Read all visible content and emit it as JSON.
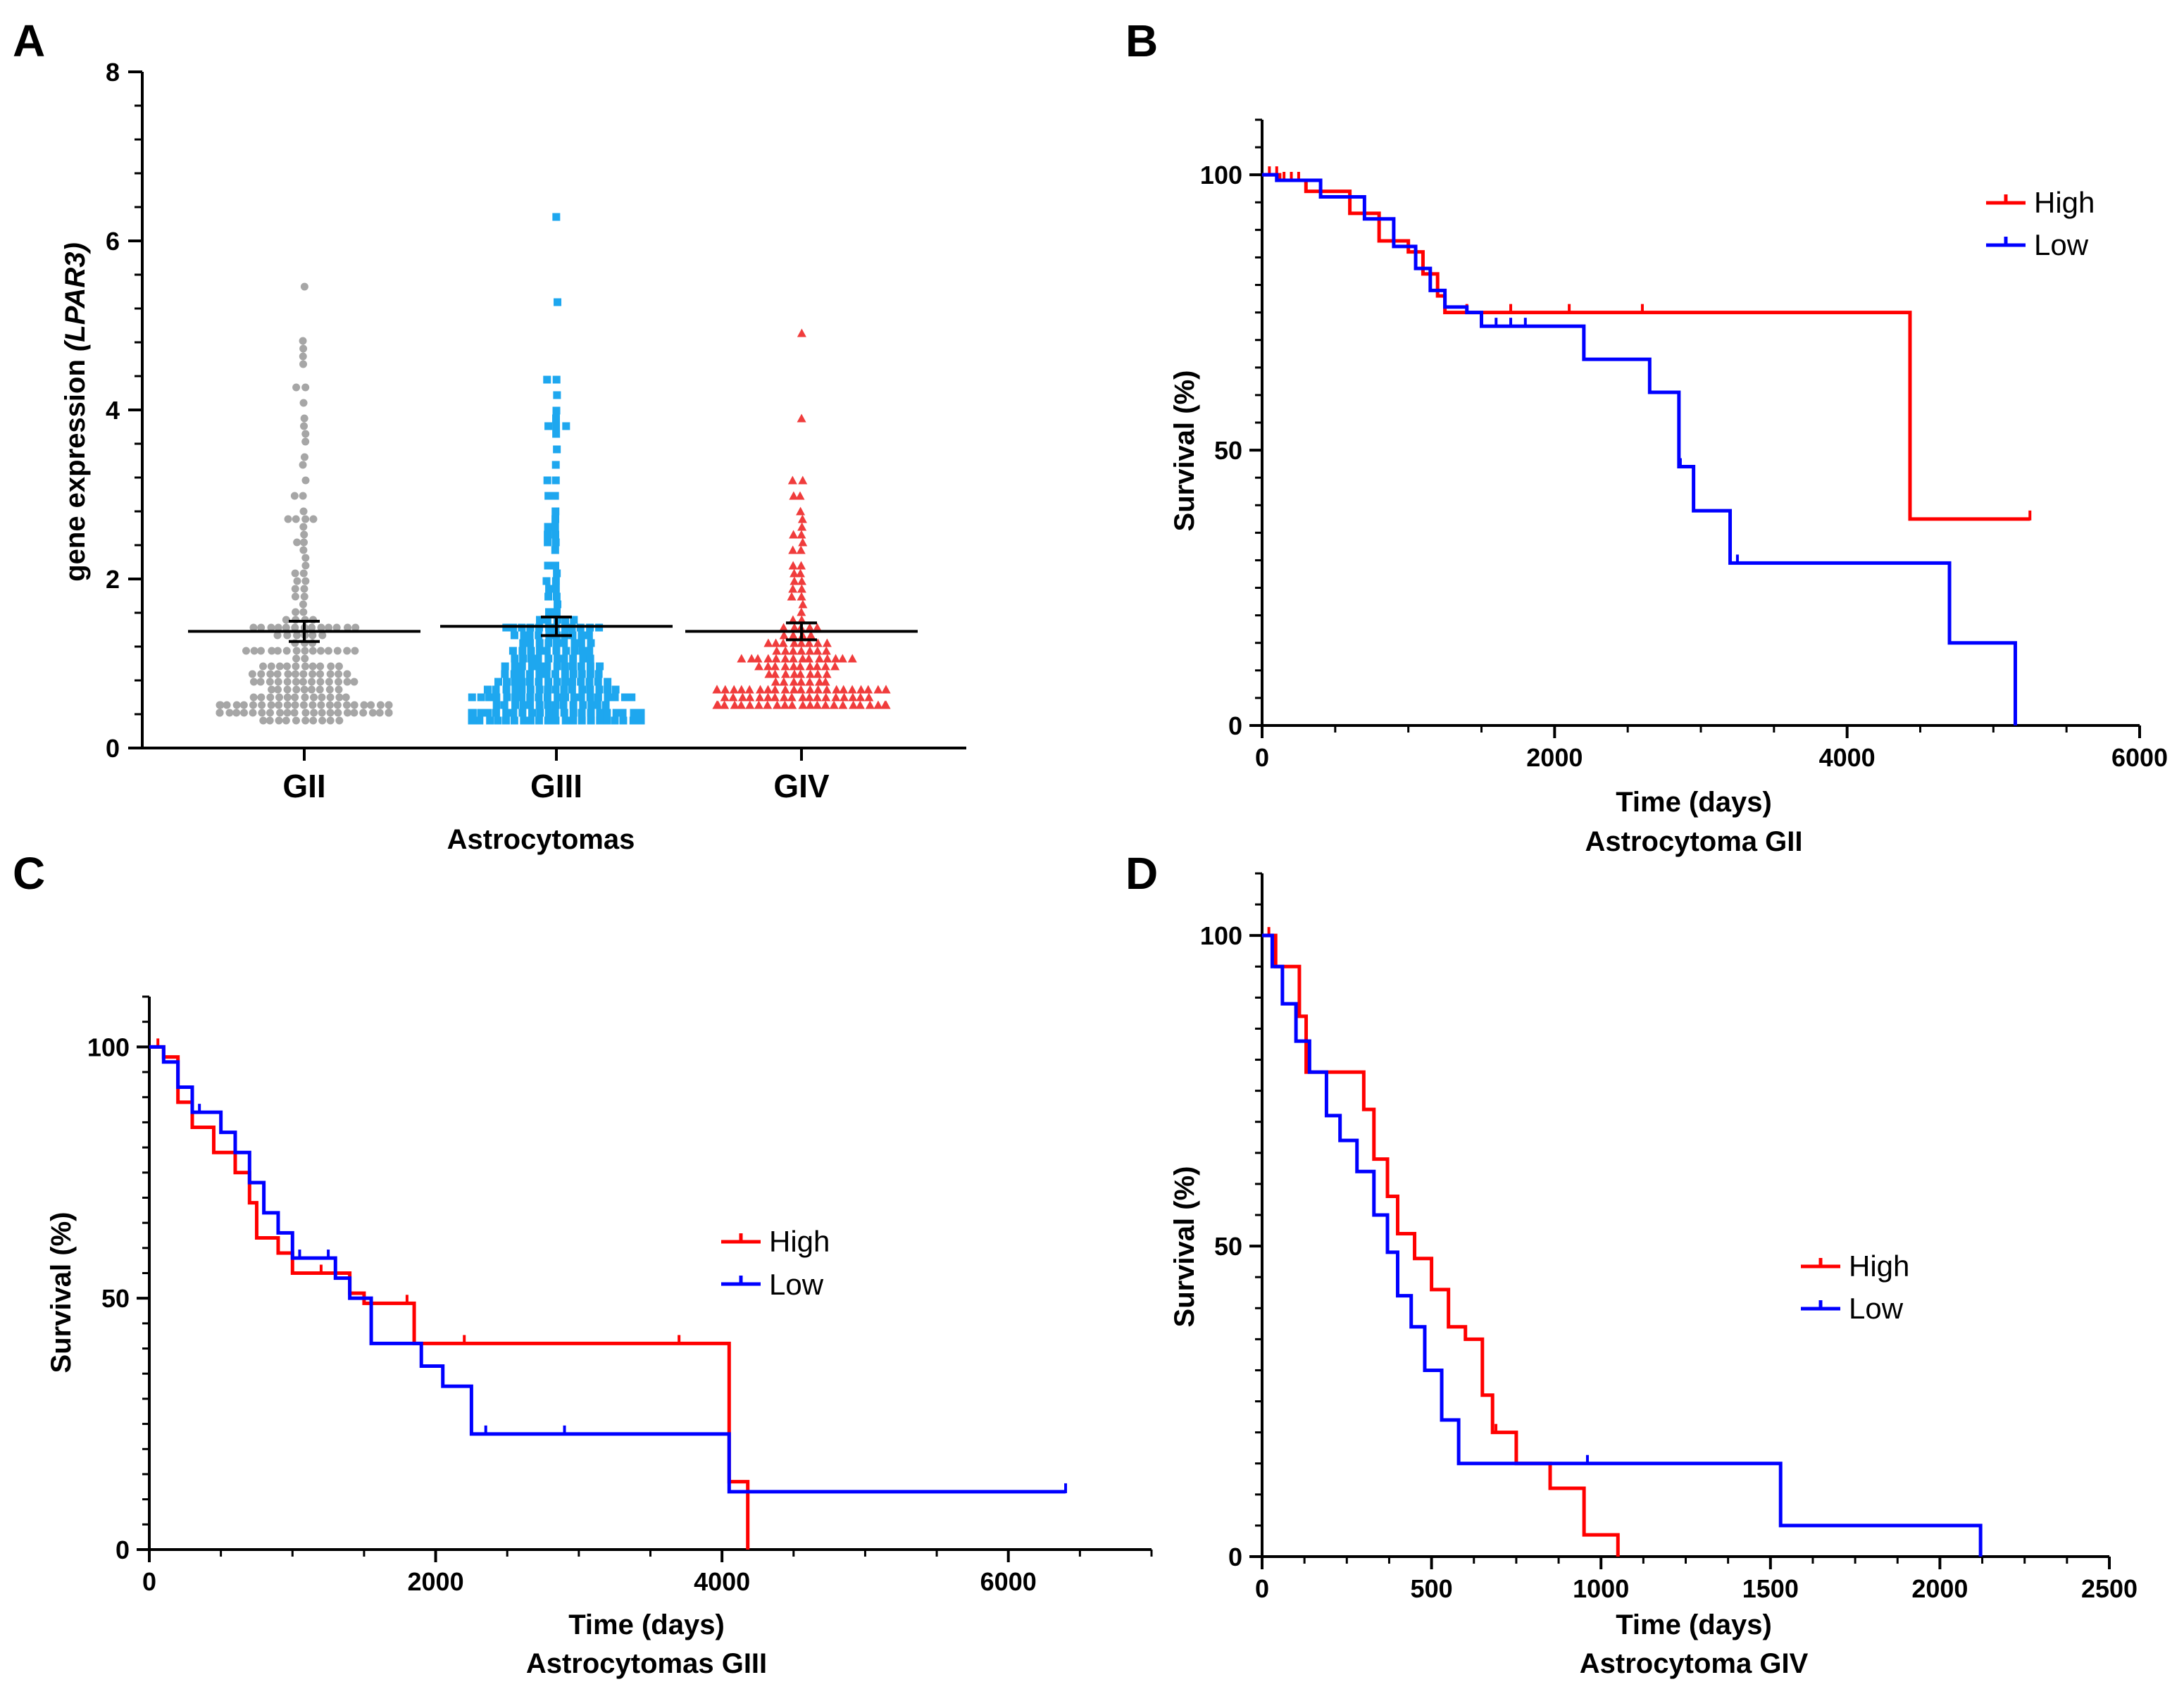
{
  "figure": {
    "colors": {
      "axis": "#000000",
      "gii": "#a6a6a6",
      "giii": "#1ea7ef",
      "giv": "#f03c3c",
      "high": "#ff0000",
      "low": "#0000ff",
      "mean_bar": "#000000"
    }
  },
  "chart_data": [
    {
      "id": "A",
      "panel_label": "A",
      "type": "scatter",
      "categories": [
        "GII",
        "GIII",
        "GIV"
      ],
      "xlabel": "Astrocytomas",
      "ylabel_prefix": "gene  expression ",
      "ylabel_gene": "(LPAR3)",
      "ylim": [
        0,
        8
      ],
      "yticks": [
        0,
        2,
        4,
        6,
        8
      ],
      "markers": [
        "circle",
        "square",
        "triangle"
      ],
      "summary": {
        "means": [
          1.38,
          1.44,
          1.38
        ],
        "sem": [
          0.12,
          0.11,
          0.1
        ]
      },
      "series": [
        {
          "name": "GII",
          "n": 200,
          "max": 5.42,
          "min": 0.35,
          "highs": [
            5.42,
            4.82,
            4.7,
            4.6,
            4.55,
            4.3,
            4.25,
            4.1,
            3.9,
            3.8,
            3.75,
            3.6,
            3.45,
            3.35,
            3.2,
            3.0,
            2.95,
            2.8,
            2.75,
            2.7,
            2.7,
            2.68,
            2.6,
            2.55,
            2.45,
            2.4,
            2.3,
            2.25,
            2.2,
            2.1,
            2.05,
            2.0,
            1.95,
            1.9,
            1.85,
            1.8,
            1.75,
            1.7,
            1.65,
            1.6,
            1.55,
            1.5
          ]
        },
        {
          "name": "GIII",
          "n": 250,
          "max": 6.25,
          "min": 0.3,
          "highs": [
            6.25,
            5.28,
            4.4,
            4.35,
            4.2,
            3.95,
            3.9,
            3.85,
            3.8,
            3.8,
            3.75,
            3.5,
            3.35,
            3.2,
            3.15,
            3.0,
            2.95,
            2.8,
            2.75,
            2.6,
            2.6,
            2.55,
            2.5,
            2.45,
            2.4,
            2.3,
            2.2,
            2.15,
            2.1,
            2.0,
            1.95,
            1.9,
            1.85,
            1.8,
            1.75,
            1.7,
            1.65,
            1.6
          ]
        },
        {
          "name": "GIV",
          "n": 160,
          "max": 4.88,
          "min": 0.5,
          "highs": [
            4.88,
            3.9,
            3.2,
            3.15,
            3.0,
            2.95,
            2.8,
            2.75,
            2.6,
            2.55,
            2.5,
            2.4,
            2.35,
            2.3,
            2.2,
            2.15,
            2.1,
            2.05,
            2.0,
            1.95,
            1.9,
            1.85,
            1.8,
            1.75,
            1.7,
            1.65
          ]
        }
      ]
    },
    {
      "id": "B",
      "panel_label": "B",
      "type": "line",
      "subtitle": "Astrocytoma GII",
      "xlabel": "Time (days)",
      "ylabel": "Survival (%)",
      "xlim": [
        0,
        6000
      ],
      "ylim": [
        0,
        110
      ],
      "xticks": [
        0,
        2000,
        4000,
        6000
      ],
      "yticks": [
        0,
        50,
        100
      ],
      "legend": [
        "High",
        "Low"
      ],
      "series": [
        {
          "name": "High",
          "x": [
            0,
            120,
            300,
            600,
            800,
            1000,
            1100,
            1200,
            1250,
            1300,
            1500,
            2000,
            4430,
            5250
          ],
          "y": [
            100,
            99,
            97,
            93,
            88,
            86,
            82,
            78,
            75,
            75,
            75,
            75,
            37.5,
            37.5
          ],
          "censor_x": [
            50,
            100,
            150,
            200,
            250,
            400,
            700,
            1400,
            1700,
            2100,
            2600,
            5250
          ]
        },
        {
          "name": "Low",
          "x": [
            0,
            100,
            400,
            700,
            900,
            1050,
            1150,
            1250,
            1400,
            1500,
            2200,
            2650,
            2850,
            2950,
            3200,
            4700,
            5150
          ],
          "y": [
            100,
            99,
            96,
            92,
            87,
            83,
            79,
            76,
            75,
            72.5,
            66.5,
            60.5,
            47,
            39,
            29.5,
            15,
            0
          ],
          "censor_x": [
            1500,
            1600,
            1700,
            1800,
            2860,
            3250
          ]
        }
      ]
    },
    {
      "id": "C",
      "panel_label": "C",
      "type": "line",
      "subtitle": "Astrocytomas GIII",
      "xlabel": "Time (days)",
      "ylabel": "Survival (%)",
      "xlim": [
        0,
        7000
      ],
      "ylim": [
        0,
        110
      ],
      "xticks": [
        0,
        2000,
        4000,
        6000
      ],
      "yticks": [
        0,
        50,
        100
      ],
      "legend": [
        "High",
        "Low"
      ],
      "series": [
        {
          "name": "High",
          "x": [
            0,
            100,
            200,
            300,
            450,
            600,
            700,
            750,
            900,
            1000,
            1400,
            1500,
            1850,
            4050,
            4180
          ],
          "y": [
            100,
            98,
            89,
            84,
            79,
            75,
            69,
            62,
            59,
            55,
            51,
            49,
            41,
            13.5,
            0
          ],
          "censor_x": [
            60,
            1200,
            1800,
            2200,
            3700
          ]
        },
        {
          "name": "Low",
          "x": [
            0,
            100,
            200,
            300,
            500,
            600,
            700,
            800,
            900,
            1000,
            1300,
            1400,
            1550,
            1900,
            2050,
            2250,
            4050,
            6400
          ],
          "y": [
            100,
            97,
            92,
            87,
            83,
            79,
            73,
            67,
            63,
            58,
            54,
            50,
            41,
            36.5,
            32.5,
            23,
            11.5,
            11.5
          ],
          "censor_x": [
            350,
            800,
            1050,
            1250,
            2350,
            2900,
            6400
          ]
        }
      ]
    },
    {
      "id": "D",
      "panel_label": "D",
      "type": "line",
      "subtitle": "Astrocytoma GIV",
      "xlabel": "Time (days)",
      "ylabel": "Survival (%)",
      "xlim": [
        0,
        2500
      ],
      "ylim": [
        0,
        110
      ],
      "xticks": [
        0,
        500,
        1000,
        1500,
        2000,
        2500
      ],
      "yticks": [
        0,
        50,
        100
      ],
      "legend": [
        "High",
        "Low"
      ],
      "series": [
        {
          "name": "High",
          "x": [
            0,
            40,
            110,
            130,
            200,
            300,
            330,
            370,
            400,
            450,
            500,
            550,
            600,
            650,
            680,
            750,
            850,
            950,
            1050
          ],
          "y": [
            100,
            95,
            87,
            78,
            78,
            72,
            64,
            58,
            52,
            48,
            43,
            37,
            35,
            26,
            20,
            15,
            11,
            3.5,
            0
          ],
          "censor_x": [
            20,
            690
          ]
        },
        {
          "name": "Low",
          "x": [
            0,
            30,
            60,
            100,
            140,
            190,
            230,
            280,
            330,
            370,
            400,
            440,
            480,
            530,
            580,
            1450,
            1530,
            2120
          ],
          "y": [
            100,
            95,
            89,
            83,
            78,
            71,
            67,
            62,
            55,
            49,
            42,
            37,
            30,
            22,
            15,
            15,
            5,
            0
          ],
          "censor_x": [
            960
          ]
        }
      ]
    }
  ]
}
